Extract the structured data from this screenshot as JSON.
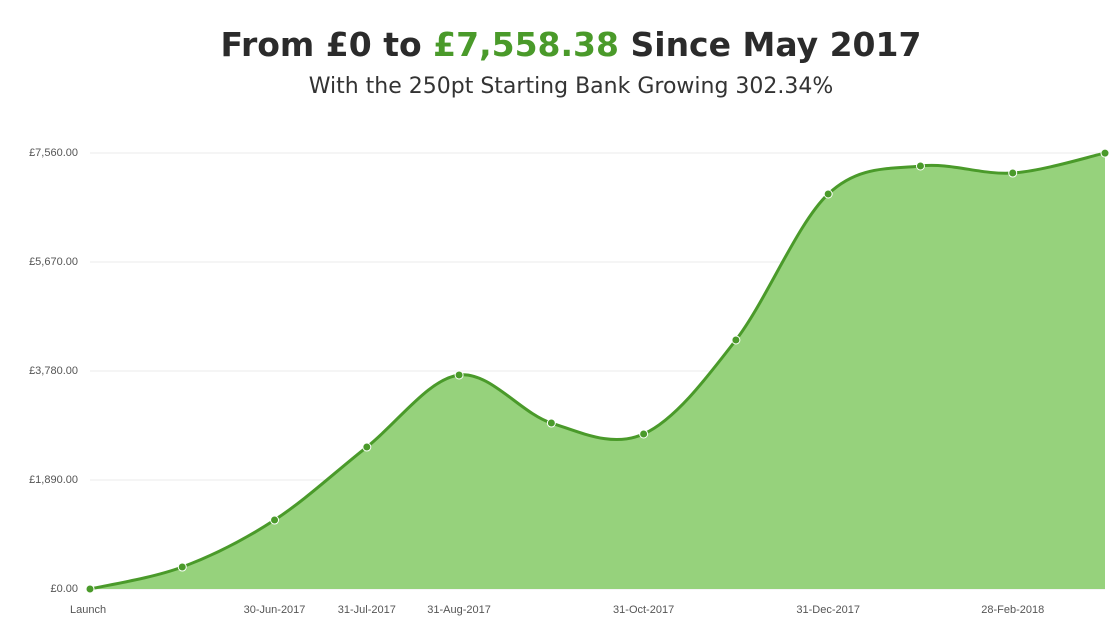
{
  "chart_data": {
    "type": "area",
    "title": {
      "before": "From £0 to",
      "highlight": "£7,558.38",
      "after": "Since May 2017"
    },
    "subtitle": "With the 250pt Starting Bank Growing 302.34%",
    "categories": [
      "Launch",
      null,
      "30-Jun-2017",
      "31-Jul-2017",
      "31-Aug-2017",
      null,
      "31-Oct-2017",
      null,
      "31-Dec-2017",
      null,
      "28-Feb-2018",
      null
    ],
    "values": [
      0,
      381,
      1196,
      2462,
      3711,
      2878,
      2688,
      4318,
      6849,
      7335,
      7213,
      7558.38
    ],
    "color": "#4a9a2a",
    "fill": "#96d27c",
    "highlight_color": "#4a9a2a",
    "ylim": [
      0,
      7560
    ],
    "yticks": [
      {
        "value": 0,
        "label": "£0.00"
      },
      {
        "value": 1890,
        "label": "£1,890.00"
      },
      {
        "value": 3780,
        "label": "£3,780.00"
      },
      {
        "value": 5670,
        "label": "£5,670.00"
      },
      {
        "value": 7560,
        "label": "£7,560.00"
      }
    ],
    "grid": true
  }
}
